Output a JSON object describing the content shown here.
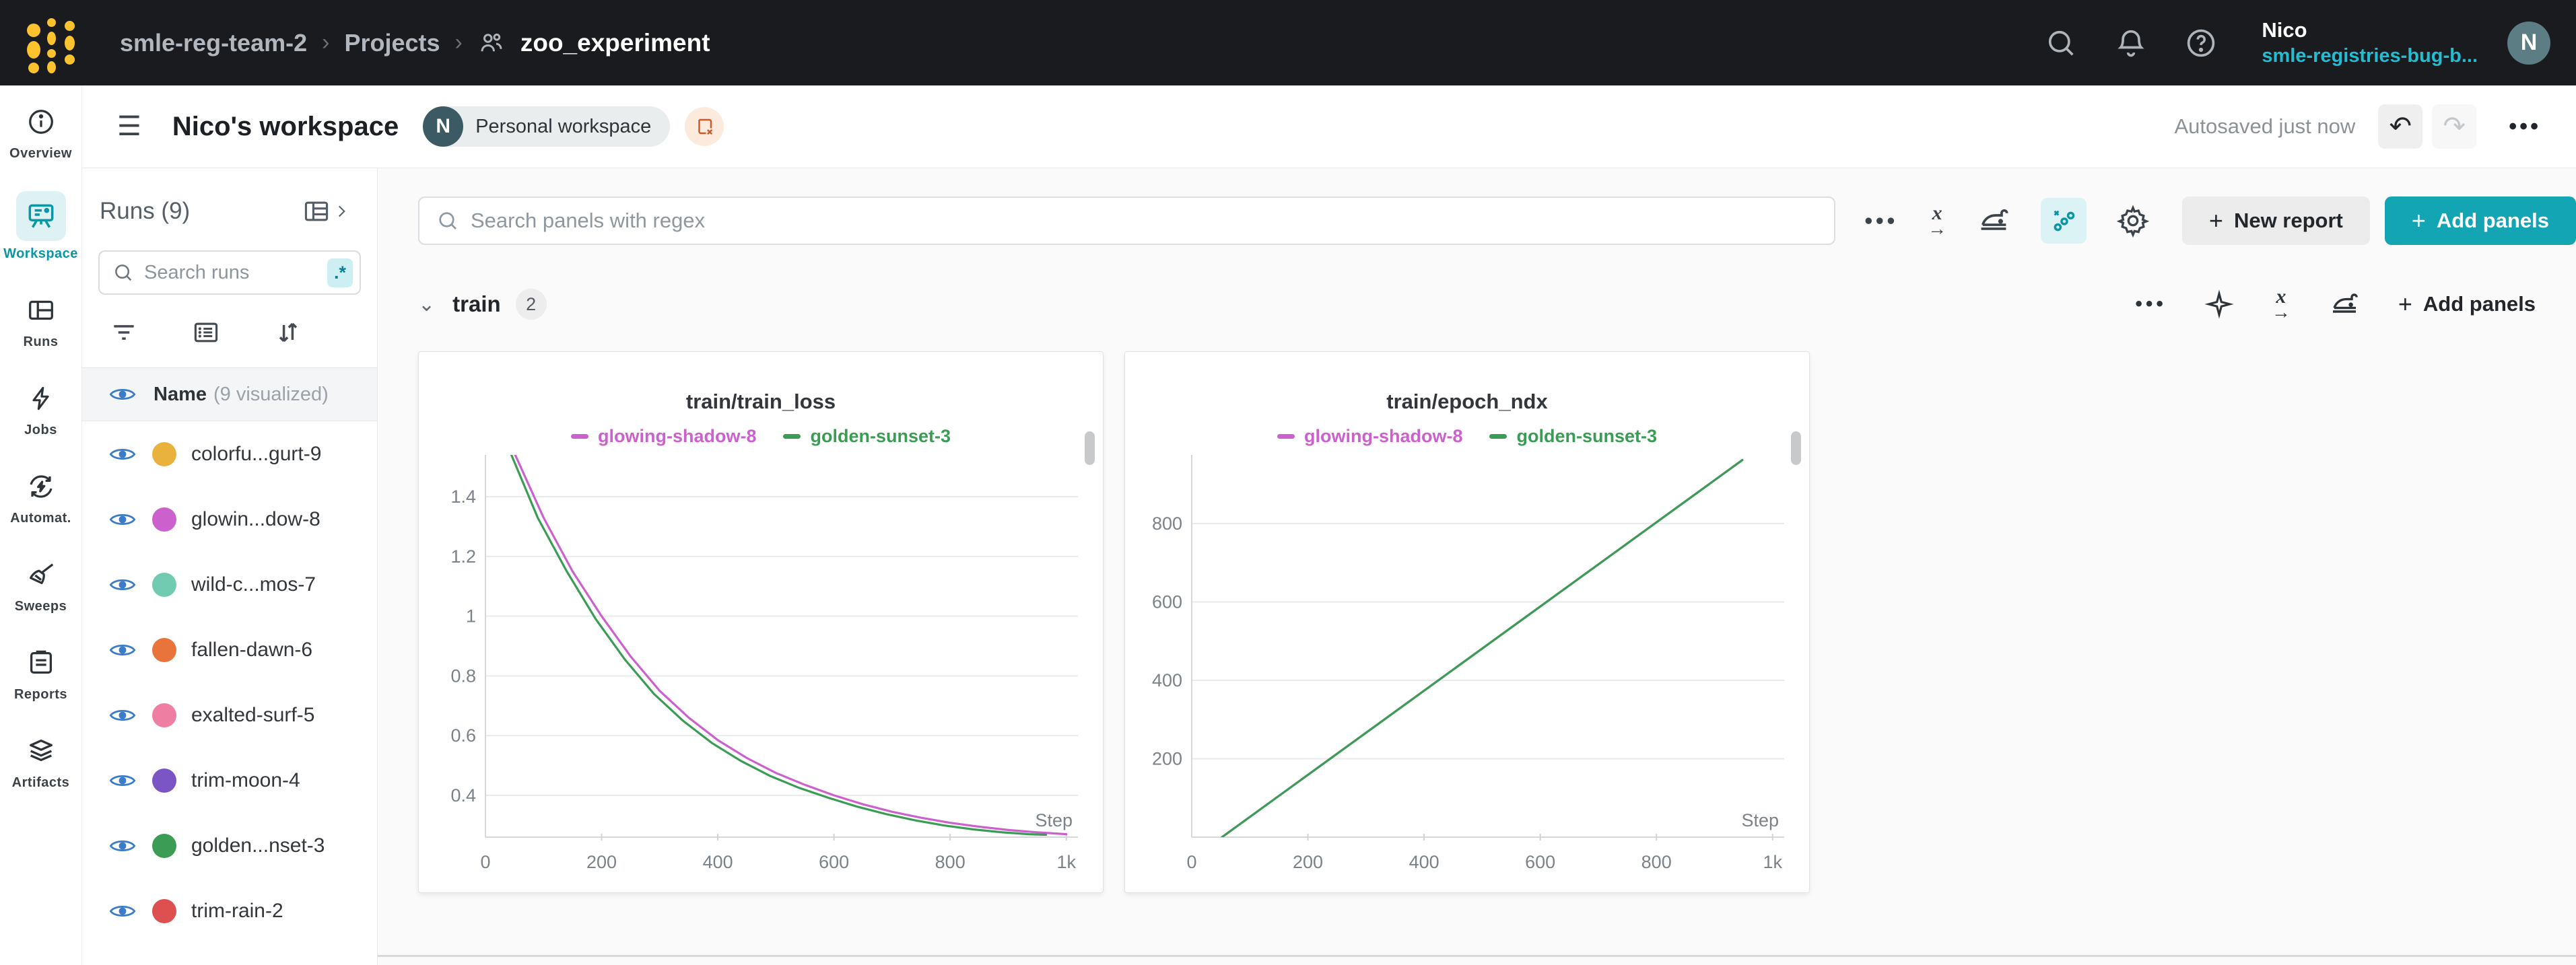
{
  "topnav": {
    "breadcrumb": {
      "team": "smle-reg-team-2",
      "section": "Projects",
      "project": "zoo_experiment",
      "separator": "›"
    },
    "user": {
      "name": "Nico",
      "org": "smle-registries-bug-b...",
      "avatar_initial": "N"
    }
  },
  "header": {
    "title": "Nico's workspace",
    "badge_initial": "N",
    "badge_label": "Personal workspace",
    "autosave_status": "Autosaved just now",
    "icons": {
      "hamburger": "☰",
      "undo": "↶",
      "redo": "↷",
      "more": "•••"
    }
  },
  "sidebar": {
    "items": [
      {
        "label": "Overview",
        "icon": "info-icon",
        "active": false
      },
      {
        "label": "Workspace",
        "icon": "workspace-icon",
        "active": true
      },
      {
        "label": "Runs",
        "icon": "runs-table-icon",
        "active": false
      },
      {
        "label": "Jobs",
        "icon": "lightning-icon",
        "active": false
      },
      {
        "label": "Automat.",
        "icon": "automations-icon",
        "active": false
      },
      {
        "label": "Sweeps",
        "icon": "broom-icon",
        "active": false
      },
      {
        "label": "Reports",
        "icon": "report-icon",
        "active": false
      },
      {
        "label": "Artifacts",
        "icon": "layers-icon",
        "active": false
      }
    ]
  },
  "runs_panel": {
    "title": "Runs (9)",
    "search_placeholder": "Search runs",
    "regex_badge": ".*",
    "list_header": {
      "name_label": "Name",
      "count_label": "(9 visualized)"
    },
    "rows": [
      {
        "label": "colorfu...gurt-9",
        "color": "#E9B23C"
      },
      {
        "label": "glowin...dow-8",
        "color": "#CC61CE"
      },
      {
        "label": "wild-c...mos-7",
        "color": "#70CBB0"
      },
      {
        "label": "fallen-dawn-6",
        "color": "#E8743C"
      },
      {
        "label": "exalted-surf-5",
        "color": "#EE7FA3"
      },
      {
        "label": "trim-moon-4",
        "color": "#7C55C5"
      },
      {
        "label": "golden...nset-3",
        "color": "#3B9C55"
      },
      {
        "label": "trim-rain-2",
        "color": "#DE4F4F"
      }
    ]
  },
  "main_toolbar": {
    "search_placeholder": "Search panels with regex",
    "more_icon": "•••",
    "new_report_label": "New report",
    "add_panels_label": "Add panels",
    "plus": "+"
  },
  "section": {
    "name": "train",
    "count": "2",
    "chevron": "⌄",
    "more_icon": "•••",
    "add_panels_label": "Add panels",
    "plus": "+"
  },
  "accent_colors": {
    "teal_button": "#14A5B4",
    "active_icon_teal": "#0A96A5",
    "eye_blue": "#3B7CC9"
  },
  "chart_data": [
    {
      "type": "line",
      "title": "train/train_loss",
      "xlabel": "Step",
      "ylabel": "",
      "xlim": [
        0,
        1020
      ],
      "ylim": [
        0.26,
        1.54
      ],
      "grid": true,
      "legend_position": "top-center",
      "xticks": {
        "values": [
          0,
          200,
          400,
          600,
          800,
          1000
        ],
        "labels": [
          "0",
          "200",
          "400",
          "600",
          "800",
          "1k"
        ]
      },
      "yticks": {
        "values": [
          0.4,
          0.6,
          0.8,
          1.0,
          1.2,
          1.4
        ],
        "labels": [
          "0.4",
          "0.6",
          "0.8",
          "1",
          "1.2",
          "1.4"
        ]
      },
      "series": [
        {
          "name": "glowing-shadow-8",
          "color": "#CC61CE",
          "points": [
            [
              42,
              1.58
            ],
            [
              100,
              1.33
            ],
            [
              150,
              1.15
            ],
            [
              200,
              1.0
            ],
            [
              250,
              0.865
            ],
            [
              300,
              0.75
            ],
            [
              350,
              0.66
            ],
            [
              400,
              0.585
            ],
            [
              450,
              0.525
            ],
            [
              500,
              0.475
            ],
            [
              550,
              0.435
            ],
            [
              600,
              0.4
            ],
            [
              650,
              0.37
            ],
            [
              700,
              0.345
            ],
            [
              750,
              0.325
            ],
            [
              800,
              0.308
            ],
            [
              850,
              0.295
            ],
            [
              900,
              0.284
            ],
            [
              950,
              0.276
            ],
            [
              1000,
              0.27
            ]
          ]
        },
        {
          "name": "golden-sunset-3",
          "color": "#3B9C55",
          "points": [
            [
              36,
              1.58
            ],
            [
              90,
              1.33
            ],
            [
              140,
              1.15
            ],
            [
              190,
              0.99
            ],
            [
              240,
              0.855
            ],
            [
              290,
              0.74
            ],
            [
              340,
              0.65
            ],
            [
              390,
              0.575
            ],
            [
              440,
              0.515
            ],
            [
              490,
              0.465
            ],
            [
              540,
              0.425
            ],
            [
              590,
              0.392
            ],
            [
              640,
              0.362
            ],
            [
              690,
              0.337
            ],
            [
              740,
              0.316
            ],
            [
              790,
              0.299
            ],
            [
              840,
              0.286
            ],
            [
              890,
              0.276
            ],
            [
              935,
              0.27
            ],
            [
              965,
              0.268
            ]
          ]
        }
      ]
    },
    {
      "type": "line",
      "title": "train/epoch_ndx",
      "xlabel": "Step",
      "ylabel": "",
      "xlim": [
        0,
        1020
      ],
      "ylim": [
        0,
        975
      ],
      "grid": true,
      "legend_position": "top-center",
      "xticks": {
        "values": [
          0,
          200,
          400,
          600,
          800,
          1000
        ],
        "labels": [
          "0",
          "200",
          "400",
          "600",
          "800",
          "1k"
        ]
      },
      "yticks": {
        "values": [
          200,
          400,
          600,
          800
        ],
        "labels": [
          "200",
          "400",
          "600",
          "800"
        ]
      },
      "series": [
        {
          "name": "glowing-shadow-8",
          "color": "#CC61CE",
          "points": [
            [
              52,
              0
            ],
            [
              948,
              962
            ]
          ]
        },
        {
          "name": "golden-sunset-3",
          "color": "#3B9C55",
          "points": [
            [
              52,
              0
            ],
            [
              948,
              962
            ]
          ]
        }
      ]
    }
  ]
}
